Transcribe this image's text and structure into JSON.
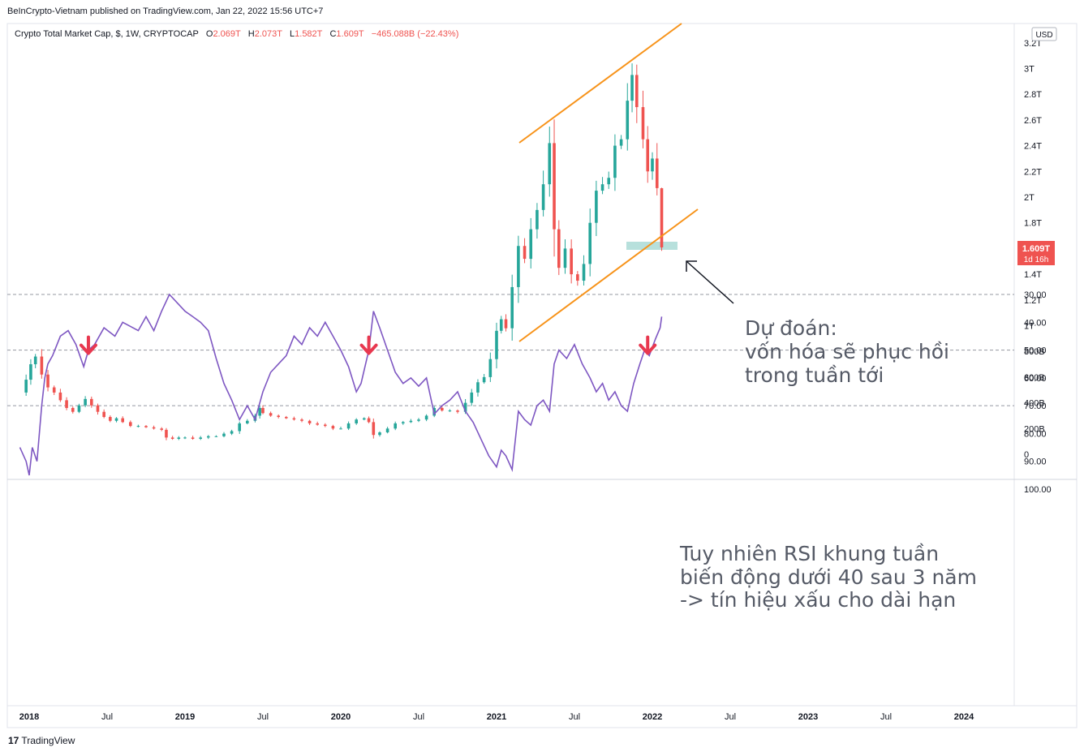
{
  "header": {
    "published": "BeInCrypto-Vietnam published on TradingView.com, Jan 22, 2022 15:56 UTC+7"
  },
  "legend": {
    "symbol": "Crypto Total Market Cap, $, 1W, CRYPTOCAP",
    "o_label": "O",
    "o_value": "2.069T",
    "h_label": "H",
    "h_value": "2.073T",
    "l_label": "L",
    "l_value": "1.582T",
    "c_label": "C",
    "c_value": "1.609T",
    "change": "−465.088B (−22.43%)"
  },
  "currency_badge": "USD",
  "price_badge": {
    "value": "1.609T",
    "countdown": "1d 16h"
  },
  "annotations": {
    "forecast": [
      "Dự đoán:",
      "vốn hóa sẽ phục hồi",
      "trong tuần tới"
    ],
    "rsi_note": [
      "Tuy nhiên RSI khung tuần",
      "biến động dưới 40 sau 3 năm",
      "-> tín hiệu xấu cho dài hạn"
    ]
  },
  "footer": {
    "logo": "17",
    "brand": "TradingView"
  },
  "colors": {
    "up": "#26a69a",
    "down": "#ef5350",
    "channel": "#f7931a",
    "rsi": "#7e57c2",
    "rsi_band": "#ede7f6",
    "zone": "#a5d8d3",
    "arrow": "#e8384f"
  },
  "chart_data": [
    {
      "type": "candlestick",
      "title": "Crypto Total Market Cap, $, 1W, CRYPTOCAP",
      "x_labels": [
        "2018",
        "Jul",
        "2019",
        "Jul",
        "2020",
        "Jul",
        "2021",
        "Jul",
        "2022",
        "Jul",
        "2023",
        "Jul",
        "2024"
      ],
      "x_label_dates": [
        2018.0,
        2018.5,
        2019.0,
        2019.5,
        2020.0,
        2020.5,
        2021.0,
        2021.5,
        2022.0,
        2022.5,
        2023.0,
        2023.5,
        2024.0
      ],
      "y_ticks": [
        "0",
        "200B",
        "400B",
        "600B",
        "800B",
        "1T",
        "1.2T",
        "1.4T",
        "1.6T",
        "1.8T",
        "2T",
        "2.2T",
        "2.4T",
        "2.6T",
        "2.8T",
        "3T",
        "3.2T"
      ],
      "y_tick_values": [
        0,
        0.2,
        0.4,
        0.6,
        0.8,
        1.0,
        1.2,
        1.4,
        1.6,
        1.8,
        2.0,
        2.2,
        2.4,
        2.6,
        2.8,
        3.0,
        3.2
      ],
      "ylim_trillions": [
        -0.05,
        3.3
      ],
      "last": {
        "open": 2.069,
        "high": 2.073,
        "low": 1.582,
        "close": 1.609
      },
      "closes_trillions": [
        [
          2017.94,
          0.48
        ],
        [
          2017.98,
          0.58
        ],
        [
          2018.01,
          0.7
        ],
        [
          2018.04,
          0.76
        ],
        [
          2018.08,
          0.62
        ],
        [
          2018.12,
          0.52
        ],
        [
          2018.16,
          0.48
        ],
        [
          2018.2,
          0.42
        ],
        [
          2018.24,
          0.36
        ],
        [
          2018.28,
          0.33
        ],
        [
          2018.32,
          0.38
        ],
        [
          2018.36,
          0.43
        ],
        [
          2018.4,
          0.38
        ],
        [
          2018.44,
          0.33
        ],
        [
          2018.48,
          0.29
        ],
        [
          2018.52,
          0.26
        ],
        [
          2018.56,
          0.28
        ],
        [
          2018.6,
          0.25
        ],
        [
          2018.65,
          0.22
        ],
        [
          2018.7,
          0.22
        ],
        [
          2018.75,
          0.21
        ],
        [
          2018.8,
          0.2
        ],
        [
          2018.85,
          0.19
        ],
        [
          2018.88,
          0.13
        ],
        [
          2018.92,
          0.12
        ],
        [
          2018.96,
          0.13
        ],
        [
          2019.0,
          0.13
        ],
        [
          2019.05,
          0.12
        ],
        [
          2019.1,
          0.13
        ],
        [
          2019.15,
          0.14
        ],
        [
          2019.2,
          0.14
        ],
        [
          2019.25,
          0.16
        ],
        [
          2019.3,
          0.18
        ],
        [
          2019.35,
          0.24
        ],
        [
          2019.4,
          0.26
        ],
        [
          2019.45,
          0.3
        ],
        [
          2019.48,
          0.36
        ],
        [
          2019.5,
          0.32
        ],
        [
          2019.55,
          0.3
        ],
        [
          2019.6,
          0.29
        ],
        [
          2019.65,
          0.28
        ],
        [
          2019.7,
          0.27
        ],
        [
          2019.75,
          0.26
        ],
        [
          2019.8,
          0.24
        ],
        [
          2019.85,
          0.23
        ],
        [
          2019.9,
          0.22
        ],
        [
          2019.95,
          0.2
        ],
        [
          2020.0,
          0.2
        ],
        [
          2020.05,
          0.24
        ],
        [
          2020.1,
          0.27
        ],
        [
          2020.15,
          0.28
        ],
        [
          2020.18,
          0.25
        ],
        [
          2020.21,
          0.15
        ],
        [
          2020.25,
          0.17
        ],
        [
          2020.3,
          0.2
        ],
        [
          2020.35,
          0.24
        ],
        [
          2020.4,
          0.25
        ],
        [
          2020.45,
          0.26
        ],
        [
          2020.5,
          0.27
        ],
        [
          2020.55,
          0.3
        ],
        [
          2020.6,
          0.36
        ],
        [
          2020.65,
          0.34
        ],
        [
          2020.7,
          0.34
        ],
        [
          2020.75,
          0.33
        ],
        [
          2020.8,
          0.4
        ],
        [
          2020.84,
          0.48
        ],
        [
          2020.88,
          0.56
        ],
        [
          2020.92,
          0.6
        ],
        [
          2020.96,
          0.74
        ],
        [
          2021.0,
          0.96
        ],
        [
          2021.03,
          1.05
        ],
        [
          2021.06,
          0.98
        ],
        [
          2021.1,
          1.3
        ],
        [
          2021.14,
          1.62
        ],
        [
          2021.18,
          1.52
        ],
        [
          2021.22,
          1.75
        ],
        [
          2021.26,
          1.9
        ],
        [
          2021.3,
          2.1
        ],
        [
          2021.34,
          2.42
        ],
        [
          2021.37,
          1.75
        ],
        [
          2021.4,
          1.45
        ],
        [
          2021.44,
          1.6
        ],
        [
          2021.48,
          1.4
        ],
        [
          2021.52,
          1.35
        ],
        [
          2021.56,
          1.48
        ],
        [
          2021.6,
          1.8
        ],
        [
          2021.64,
          2.05
        ],
        [
          2021.68,
          2.1
        ],
        [
          2021.72,
          2.15
        ],
        [
          2021.76,
          2.4
        ],
        [
          2021.8,
          2.45
        ],
        [
          2021.84,
          2.75
        ],
        [
          2021.87,
          2.95
        ],
        [
          2021.9,
          2.7
        ],
        [
          2021.94,
          2.45
        ],
        [
          2021.97,
          2.2
        ],
        [
          2022.0,
          2.3
        ],
        [
          2022.03,
          2.07
        ],
        [
          2022.06,
          1.609
        ]
      ]
    },
    {
      "type": "line",
      "title": "RSI",
      "y_ticks": [
        "30.00",
        "40.00",
        "50.00",
        "60.00",
        "70.00",
        "80.00",
        "90.00",
        "100.00"
      ],
      "y_tick_values": [
        30,
        40,
        50,
        60,
        70,
        80,
        90,
        100
      ],
      "ylim": [
        28,
        101
      ],
      "band": [
        30,
        70
      ],
      "midline": 50,
      "signal_arrows_at": [
        2018.38,
        2020.18,
        2021.97
      ],
      "values": [
        [
          2017.94,
          85
        ],
        [
          2017.98,
          90
        ],
        [
          2018.0,
          95
        ],
        [
          2018.02,
          85
        ],
        [
          2018.05,
          90
        ],
        [
          2018.08,
          70
        ],
        [
          2018.1,
          60
        ],
        [
          2018.12,
          55
        ],
        [
          2018.15,
          52
        ],
        [
          2018.2,
          45
        ],
        [
          2018.25,
          43
        ],
        [
          2018.3,
          48
        ],
        [
          2018.35,
          56
        ],
        [
          2018.38,
          50
        ],
        [
          2018.42,
          48
        ],
        [
          2018.48,
          42
        ],
        [
          2018.55,
          45
        ],
        [
          2018.6,
          40
        ],
        [
          2018.7,
          43
        ],
        [
          2018.75,
          38
        ],
        [
          2018.8,
          43
        ],
        [
          2018.85,
          36
        ],
        [
          2018.9,
          30
        ],
        [
          2018.95,
          33
        ],
        [
          2019.0,
          36
        ],
        [
          2019.05,
          38
        ],
        [
          2019.1,
          40
        ],
        [
          2019.15,
          43
        ],
        [
          2019.2,
          53
        ],
        [
          2019.25,
          62
        ],
        [
          2019.3,
          68
        ],
        [
          2019.35,
          75
        ],
        [
          2019.4,
          70
        ],
        [
          2019.45,
          75
        ],
        [
          2019.5,
          65
        ],
        [
          2019.55,
          58
        ],
        [
          2019.6,
          55
        ],
        [
          2019.65,
          52
        ],
        [
          2019.7,
          45
        ],
        [
          2019.75,
          48
        ],
        [
          2019.8,
          42
        ],
        [
          2019.85,
          45
        ],
        [
          2019.9,
          40
        ],
        [
          2019.95,
          45
        ],
        [
          2020.0,
          50
        ],
        [
          2020.05,
          56
        ],
        [
          2020.1,
          65
        ],
        [
          2020.13,
          62
        ],
        [
          2020.18,
          50
        ],
        [
          2020.21,
          36
        ],
        [
          2020.25,
          42
        ],
        [
          2020.3,
          50
        ],
        [
          2020.35,
          58
        ],
        [
          2020.4,
          62
        ],
        [
          2020.45,
          60
        ],
        [
          2020.5,
          63
        ],
        [
          2020.55,
          60
        ],
        [
          2020.6,
          73
        ],
        [
          2020.65,
          70
        ],
        [
          2020.7,
          68
        ],
        [
          2020.75,
          65
        ],
        [
          2020.8,
          72
        ],
        [
          2020.85,
          76
        ],
        [
          2020.9,
          82
        ],
        [
          2020.95,
          88
        ],
        [
          2021.0,
          92
        ],
        [
          2021.03,
          86
        ],
        [
          2021.06,
          88
        ],
        [
          2021.1,
          93
        ],
        [
          2021.14,
          72
        ],
        [
          2021.18,
          75
        ],
        [
          2021.22,
          77
        ],
        [
          2021.26,
          70
        ],
        [
          2021.3,
          68
        ],
        [
          2021.34,
          72
        ],
        [
          2021.37,
          55
        ],
        [
          2021.4,
          50
        ],
        [
          2021.45,
          53
        ],
        [
          2021.5,
          48
        ],
        [
          2021.55,
          55
        ],
        [
          2021.6,
          60
        ],
        [
          2021.64,
          65
        ],
        [
          2021.68,
          62
        ],
        [
          2021.72,
          68
        ],
        [
          2021.76,
          65
        ],
        [
          2021.8,
          70
        ],
        [
          2021.84,
          72
        ],
        [
          2021.88,
          62
        ],
        [
          2021.92,
          55
        ],
        [
          2021.95,
          50
        ],
        [
          2021.98,
          52
        ],
        [
          2022.02,
          46
        ],
        [
          2022.05,
          42
        ],
        [
          2022.06,
          38
        ]
      ]
    }
  ]
}
